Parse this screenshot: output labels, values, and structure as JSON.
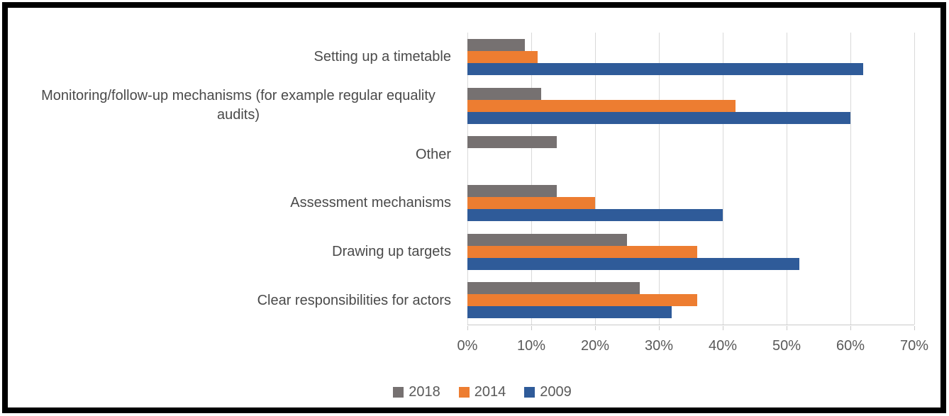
{
  "chart_data": {
    "type": "bar",
    "orientation": "horizontal",
    "title": "",
    "xlabel": "",
    "ylabel": "",
    "categories": [
      "Setting up a timetable",
      "Monitoring/follow-up mechanisms (for example regular equality audits)",
      "Other",
      "Assessment mechanisms",
      "Drawing up targets",
      "Clear responsibilities for actors"
    ],
    "series": [
      {
        "name": "2018",
        "color": "#767171",
        "values": [
          9,
          11.5,
          14,
          14,
          25,
          27
        ]
      },
      {
        "name": "2014",
        "color": "#ED7D31",
        "values": [
          11,
          42,
          0,
          20,
          36,
          36
        ]
      },
      {
        "name": "2009",
        "color": "#2F5B99",
        "values": [
          62,
          60,
          0,
          40,
          52,
          32
        ]
      }
    ],
    "x_axis": {
      "min": 0,
      "max": 70,
      "tick_step": 10,
      "tick_labels": [
        "0%",
        "10%",
        "20%",
        "30%",
        "40%",
        "50%",
        "60%",
        "70%"
      ]
    },
    "grid": "vertical",
    "gridline_color": "#D9D9D9",
    "legend": {
      "position": "bottom",
      "entries": [
        "2018",
        "2014",
        "2009"
      ]
    }
  }
}
